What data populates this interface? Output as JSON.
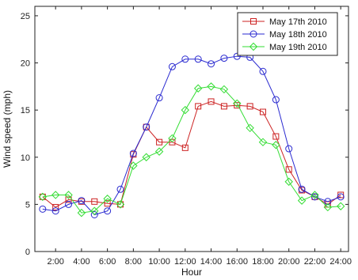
{
  "chart_data": {
    "type": "line",
    "x": [
      1,
      2,
      3,
      4,
      5,
      6,
      7,
      8,
      9,
      10,
      11,
      12,
      13,
      14,
      15,
      16,
      17,
      18,
      19,
      20,
      21,
      22,
      23,
      24
    ],
    "x_tick_labels": [
      "2:00",
      "4:00",
      "6:00",
      "8:00",
      "10:00",
      "12:00",
      "14:00",
      "16:00",
      "18:00",
      "20:00",
      "22:00",
      "24:00"
    ],
    "y_ticks": [
      0,
      5,
      10,
      15,
      20,
      25
    ],
    "xlim": [
      0.4,
      24.6
    ],
    "ylim": [
      0,
      26
    ],
    "xlabel": "Hour",
    "ylabel": "Wind speed (mph)",
    "title": "",
    "grid": false,
    "legend_position": "top-right",
    "series": [
      {
        "name": "May 17th 2010",
        "color": "#cc2222",
        "marker": "square",
        "values": [
          5.8,
          4.7,
          5.5,
          5.3,
          5.3,
          5.1,
          5.0,
          10.3,
          13.2,
          11.6,
          11.6,
          11.0,
          15.4,
          15.9,
          15.4,
          15.5,
          15.4,
          14.8,
          12.2,
          8.7,
          6.5,
          5.8,
          5.0,
          6.0
        ]
      },
      {
        "name": "May 18th 2010",
        "color": "#2a2ad0",
        "marker": "circle",
        "values": [
          4.5,
          4.3,
          5.0,
          5.4,
          3.9,
          4.3,
          6.6,
          10.4,
          13.2,
          16.3,
          19.6,
          20.4,
          20.4,
          19.9,
          20.5,
          20.7,
          20.6,
          19.1,
          16.1,
          10.9,
          6.6,
          5.8,
          5.3,
          5.8
        ]
      },
      {
        "name": "May 19th 2010",
        "color": "#33dd33",
        "marker": "diamond",
        "values": [
          5.8,
          6.0,
          6.0,
          4.1,
          4.3,
          5.6,
          5.0,
          9.1,
          10.0,
          10.6,
          12.0,
          15.0,
          17.3,
          17.5,
          17.2,
          15.7,
          13.1,
          11.6,
          11.3,
          7.4,
          5.4,
          6.0,
          4.7,
          4.8
        ]
      }
    ]
  }
}
